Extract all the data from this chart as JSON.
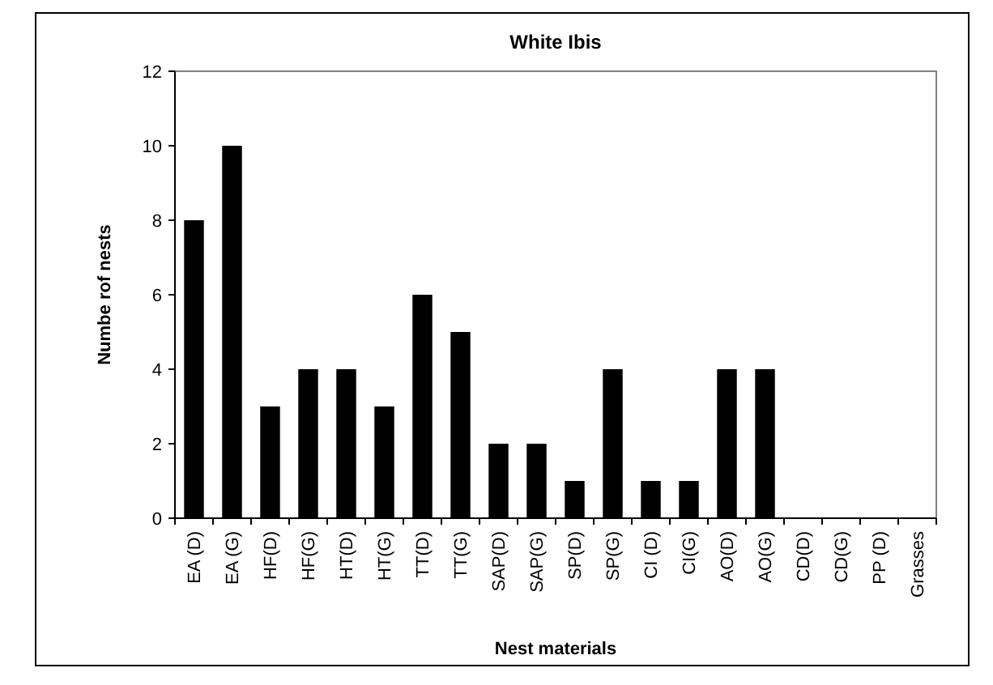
{
  "chart_data": {
    "type": "bar",
    "title": "White Ibis",
    "xlabel": "Nest materials",
    "ylabel": "Numbe rof nests",
    "categories": [
      "EA (D)",
      "EA (G)",
      "HF(D)",
      "HF(G)",
      "HT(D)",
      "HT(G)",
      "TT(D)",
      "TT(G)",
      "SAP(D)",
      "SAP(G)",
      "SP(D)",
      "SP(G)",
      "CI (D)",
      "CI(G)",
      "AO(D)",
      "AO(G)",
      "CD(D)",
      "CD(G)",
      "PP (D)",
      "Grasses"
    ],
    "values": [
      8,
      10,
      3,
      4,
      4,
      3,
      6,
      5,
      2,
      2,
      1,
      4,
      1,
      1,
      4,
      4,
      0,
      0,
      0,
      0
    ],
    "color": "#000000",
    "ylim": [
      0,
      12
    ],
    "yticks": [
      0,
      2,
      4,
      6,
      8,
      10,
      12
    ],
    "grid": false
  }
}
